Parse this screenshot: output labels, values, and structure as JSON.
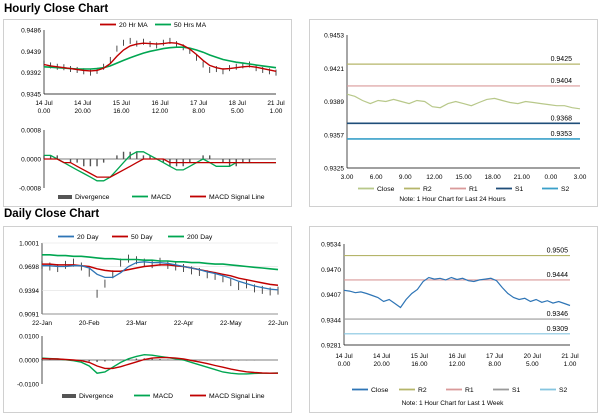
{
  "sections": {
    "hourly": "Hourly Close Chart",
    "daily": "Daily Close Chart"
  },
  "colors": {
    "close_candle": "#222222",
    "ma_short": "#c00000",
    "ma_long": "#00a651",
    "macd": "#00a651",
    "signal": "#c00000",
    "divergence": "#555555",
    "r2": "#b5b56a",
    "r1": "#d99a9a",
    "s1": "#1f4e79",
    "s2": "#3aa0c9",
    "close_line_hourly": "#b8c88a",
    "close_line_daily": "#2e75b6"
  },
  "chart_data": [
    {
      "id": "hourly_price",
      "type": "line",
      "legend": [
        "20 Hr MA",
        "50 Hrs MA"
      ],
      "yticks": [
        "0.9486",
        "0.9439",
        "0.9392",
        "0.9345"
      ],
      "ylim": [
        0.9345,
        0.9486
      ],
      "xticks": [
        "14 Jul\n0.00",
        "14 Jul\n20.00",
        "15 Jul\n16.00",
        "16 Jul\n12.00",
        "17 Jul\n8.00",
        "18 Jul\n5.00",
        "21 Jul\n1.00"
      ],
      "series": [
        {
          "name": "Close",
          "values": [
            0.9412,
            0.9408,
            0.9405,
            0.9404,
            0.94,
            0.9398,
            0.9395,
            0.9392,
            0.9396,
            0.9405,
            0.942,
            0.9445,
            0.9458,
            0.9462,
            0.9456,
            0.946,
            0.9455,
            0.9452,
            0.9458,
            0.9462,
            0.9455,
            0.9448,
            0.944,
            0.9425,
            0.941,
            0.9398,
            0.94,
            0.9395,
            0.9402,
            0.9405,
            0.9408,
            0.941,
            0.9402,
            0.9398,
            0.9395,
            0.9392
          ]
        },
        {
          "name": "20 Hr MA",
          "values": [
            0.941,
            0.9407,
            0.9405,
            0.9403,
            0.9401,
            0.9399,
            0.9397,
            0.9396,
            0.9397,
            0.9402,
            0.9412,
            0.9428,
            0.9442,
            0.9451,
            0.9455,
            0.9457,
            0.9456,
            0.9455,
            0.9456,
            0.9458,
            0.9457,
            0.9452,
            0.9444,
            0.9432,
            0.9419,
            0.9408,
            0.9403,
            0.94,
            0.9401,
            0.9403,
            0.9405,
            0.9406,
            0.9404,
            0.9401,
            0.9398,
            0.9395
          ]
        },
        {
          "name": "50 Hrs MA",
          "values": [
            0.9405,
            0.9404,
            0.9403,
            0.9402,
            0.9401,
            0.94,
            0.94,
            0.94,
            0.9401,
            0.9403,
            0.9407,
            0.9413,
            0.9419,
            0.9425,
            0.943,
            0.9435,
            0.9439,
            0.9442,
            0.9445,
            0.9447,
            0.9448,
            0.9448,
            0.9446,
            0.9442,
            0.9437,
            0.9431,
            0.9426,
            0.9421,
            0.9418,
            0.9415,
            0.9413,
            0.9411,
            0.9409,
            0.9407,
            0.9405,
            0.9403
          ]
        }
      ]
    },
    {
      "id": "hourly_macd",
      "type": "bar",
      "legend": [
        "Divergence",
        "MACD",
        "MACD Signal Line"
      ],
      "yticks": [
        "0.0008",
        "0.0000",
        "-0.0008"
      ],
      "ylim": [
        -0.0008,
        0.0008
      ],
      "series": [
        {
          "name": "Divergence",
          "values": [
            0.0001,
            0.0001,
            0.0001,
            0.0,
            -0.0001,
            -0.0001,
            -0.0002,
            -0.0002,
            -0.0002,
            -0.0001,
            0.0,
            0.0001,
            0.0002,
            0.0002,
            0.0002,
            0.0001,
            0.0001,
            0.0,
            -0.0001,
            -0.0002,
            -0.0002,
            -0.0002,
            -0.0001,
            0.0,
            0.0001,
            0.0001,
            0.0,
            -0.0001,
            -0.0002,
            -0.0002,
            -0.0001,
            -0.0001,
            0.0,
            0.0,
            0.0,
            0.0
          ]
        },
        {
          "name": "MACD",
          "values": [
            0.0001,
            0.0001,
            0.0,
            -0.0001,
            -0.0002,
            -0.0003,
            -0.0004,
            -0.0005,
            -0.0006,
            -0.0006,
            -0.0005,
            -0.0003,
            -0.0001,
            0.0001,
            0.0002,
            0.0002,
            0.0001,
            0.0,
            -0.0001,
            -0.0002,
            -0.0003,
            -0.0003,
            -0.0002,
            -0.0001,
            0.0,
            -0.0001,
            -0.0002,
            -0.0002,
            -0.0002,
            -0.0001,
            -0.0001,
            -0.0001,
            -0.0001,
            -0.0001,
            -0.0001,
            -0.0001
          ]
        },
        {
          "name": "MACD Signal Line",
          "values": [
            0.0,
            0.0,
            0.0,
            -0.0001,
            -0.0001,
            -0.0002,
            -0.0003,
            -0.0004,
            -0.0005,
            -0.0005,
            -0.0005,
            -0.0004,
            -0.0003,
            -0.0002,
            -0.0001,
            0.0,
            0.0,
            0.0,
            0.0,
            -0.0001,
            -0.0001,
            -0.0001,
            -0.0001,
            -0.0001,
            -0.0001,
            -0.0001,
            -0.0001,
            -0.0001,
            -0.0001,
            -0.0001,
            -0.0001,
            -0.0001,
            -0.0001,
            -0.0001,
            -0.0001,
            -0.0001
          ]
        }
      ]
    },
    {
      "id": "hourly_levels",
      "type": "line",
      "yticks": [
        "0.9453",
        "0.9421",
        "0.9389",
        "0.9357",
        "0.9325"
      ],
      "ylim": [
        0.9325,
        0.9453
      ],
      "xticks": [
        "3.00",
        "6.00",
        "9.00",
        "12.00",
        "15.00",
        "18.00",
        "21.00",
        "0.00",
        "3.00"
      ],
      "levels": [
        {
          "name": "R2",
          "value": 0.9425,
          "label": "0.9425"
        },
        {
          "name": "R1",
          "value": 0.9404,
          "label": "0.9404"
        },
        {
          "name": "S1",
          "value": 0.9368,
          "label": "0.9368"
        },
        {
          "name": "S2",
          "value": 0.9353,
          "label": "0.9353"
        }
      ],
      "series": [
        {
          "name": "Close",
          "values": [
            0.9396,
            0.9394,
            0.939,
            0.9387,
            0.939,
            0.9389,
            0.9391,
            0.9389,
            0.9387,
            0.939,
            0.9389,
            0.9384,
            0.9383,
            0.9387,
            0.9389,
            0.9387,
            0.9385,
            0.9388,
            0.9391,
            0.9392,
            0.939,
            0.9388,
            0.9387,
            0.9389,
            0.9388,
            0.9387,
            0.9386,
            0.9385,
            0.9385,
            0.9383,
            0.9382
          ]
        }
      ],
      "legend": [
        "Close",
        "R2",
        "R1",
        "S1",
        "S2"
      ],
      "note": "Note: 1 Hour Chart for Last 24 Hours"
    },
    {
      "id": "daily_price",
      "type": "line",
      "legend": [
        "20 Day",
        "50 Day",
        "200 Day"
      ],
      "yticks": [
        "1.0001",
        "0.9698",
        "0.9394",
        "0.9091"
      ],
      "ylim": [
        0.9091,
        1.0001
      ],
      "xticks": [
        "22-Jan",
        "20-Feb",
        "23-Mar",
        "22-Apr",
        "22-May",
        "22-Jun"
      ],
      "series": [
        {
          "name": "Close",
          "values": [
            0.972,
            0.97,
            0.968,
            0.972,
            0.975,
            0.97,
            0.962,
            0.935,
            0.948,
            0.96,
            0.975,
            0.98,
            0.978,
            0.975,
            0.973,
            0.976,
            0.972,
            0.97,
            0.968,
            0.965,
            0.963,
            0.96,
            0.958,
            0.955,
            0.95,
            0.945,
            0.947,
            0.942,
            0.94,
            0.938,
            0.939
          ]
        },
        {
          "name": "20 Day",
          "values": [
            0.971,
            0.971,
            0.97,
            0.97,
            0.971,
            0.971,
            0.968,
            0.96,
            0.956,
            0.956,
            0.962,
            0.97,
            0.975,
            0.976,
            0.975,
            0.975,
            0.974,
            0.972,
            0.97,
            0.968,
            0.966,
            0.963,
            0.961,
            0.958,
            0.955,
            0.951,
            0.948,
            0.945,
            0.943,
            0.941,
            0.94
          ]
        },
        {
          "name": "50 Day",
          "values": [
            0.973,
            0.973,
            0.972,
            0.972,
            0.972,
            0.971,
            0.97,
            0.967,
            0.965,
            0.964,
            0.964,
            0.966,
            0.968,
            0.97,
            0.971,
            0.972,
            0.972,
            0.971,
            0.97,
            0.968,
            0.966,
            0.964,
            0.962,
            0.96,
            0.958,
            0.955,
            0.953,
            0.951,
            0.949,
            0.947,
            0.946
          ]
        },
        {
          "name": "200 Day",
          "values": [
            0.985,
            0.985,
            0.984,
            0.984,
            0.983,
            0.983,
            0.982,
            0.981,
            0.98,
            0.98,
            0.979,
            0.979,
            0.979,
            0.978,
            0.978,
            0.977,
            0.977,
            0.976,
            0.976,
            0.975,
            0.975,
            0.974,
            0.973,
            0.973,
            0.972,
            0.971,
            0.97,
            0.969,
            0.968,
            0.967,
            0.966
          ]
        }
      ]
    },
    {
      "id": "daily_macd",
      "type": "bar",
      "legend": [
        "Divergence",
        "MACD",
        "MACD Signal Line"
      ],
      "yticks": [
        "0.0100",
        "0.0000",
        "-0.0100"
      ],
      "ylim": [
        -0.01,
        0.01
      ],
      "series": [
        {
          "name": "Divergence",
          "values": [
            0.0005,
            0.0004,
            0.0002,
            0.0,
            -0.0002,
            -0.0004,
            -0.0006,
            -0.0008,
            -0.0006,
            -0.0003,
            0.0001,
            0.0004,
            0.0006,
            0.0007,
            0.0006,
            0.0004,
            0.0002,
            0.0,
            -0.0001,
            -0.0002,
            -0.0002,
            -0.0002,
            -0.0002,
            -0.0003,
            -0.0003,
            -0.0002,
            -0.0001,
            -0.0001,
            0.0,
            0.0,
            0.0
          ]
        },
        {
          "name": "MACD",
          "values": [
            0.0008,
            0.0006,
            0.0004,
            0.0001,
            -0.0003,
            -0.0009,
            -0.0025,
            -0.0055,
            -0.005,
            -0.003,
            -0.001,
            0.0005,
            0.0015,
            0.0022,
            0.002,
            0.0015,
            0.001,
            0.0005,
            0.0,
            -0.001,
            -0.002,
            -0.003,
            -0.004,
            -0.005,
            -0.0055,
            -0.0058,
            -0.0058,
            -0.0056,
            -0.0055,
            -0.0055,
            -0.0054
          ]
        },
        {
          "name": "MACD Signal Line",
          "values": [
            0.0006,
            0.0005,
            0.0004,
            0.0002,
            0.0,
            -0.0003,
            -0.001,
            -0.0025,
            -0.0035,
            -0.0035,
            -0.0028,
            -0.0018,
            -0.0008,
            0.0002,
            0.0008,
            0.001,
            0.001,
            0.0008,
            0.0004,
            -0.0002,
            -0.0008,
            -0.0015,
            -0.0023,
            -0.003,
            -0.0038,
            -0.0044,
            -0.0049,
            -0.0052,
            -0.0054,
            -0.0055,
            -0.0055
          ]
        }
      ]
    },
    {
      "id": "daily_levels",
      "type": "line",
      "yticks": [
        "0.9534",
        "0.9470",
        "0.9407",
        "0.9344",
        "0.9281"
      ],
      "ylim": [
        0.9281,
        0.9534
      ],
      "xticks": [
        "14 Jul\n0.00",
        "14 Jul\n20.00",
        "15 Jul\n16.00",
        "16 Jul\n12.00",
        "17 Jul\n8.00",
        "20 Jul\n5.00",
        "21 Jul\n1.00"
      ],
      "levels": [
        {
          "name": "R2",
          "value": 0.9505,
          "label": "0.9505"
        },
        {
          "name": "R1",
          "value": 0.9444,
          "label": "0.9444"
        },
        {
          "name": "S1",
          "value": 0.9346,
          "label": "0.9346"
        },
        {
          "name": "S2",
          "value": 0.9309,
          "label": "0.9309"
        }
      ],
      "series": [
        {
          "name": "Close",
          "values": [
            0.9418,
            0.9416,
            0.9412,
            0.9414,
            0.941,
            0.9405,
            0.94,
            0.939,
            0.9395,
            0.9385,
            0.9375,
            0.9395,
            0.941,
            0.942,
            0.944,
            0.945,
            0.9446,
            0.9448,
            0.9444,
            0.945,
            0.9445,
            0.9448,
            0.9442,
            0.944,
            0.9444,
            0.9446,
            0.9448,
            0.9442,
            0.9425,
            0.941,
            0.94,
            0.9395,
            0.9398,
            0.939,
            0.9395,
            0.9388,
            0.9392,
            0.9386,
            0.939,
            0.9385,
            0.938
          ]
        }
      ],
      "legend": [
        "Close",
        "R2",
        "R1",
        "S1",
        "S2"
      ],
      "note": "Note: 1 Hour Chart for Last 1 Week"
    }
  ]
}
